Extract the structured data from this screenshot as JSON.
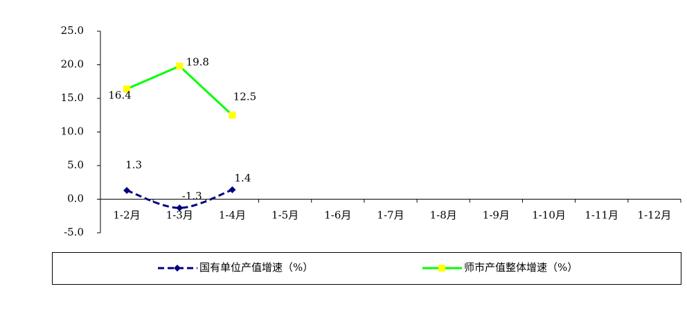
{
  "chart_data": {
    "type": "line",
    "categories": [
      "1-2月",
      "1-3月",
      "1-4月",
      "1-5月",
      "1-6月",
      "1-7月",
      "1-8月",
      "1-9月",
      "1-10月",
      "1-11月",
      "1-12月"
    ],
    "series": [
      {
        "name": "国有单位产值增速（%）",
        "color": "#000080",
        "values": [
          1.3,
          -1.3,
          1.4,
          null,
          null,
          null,
          null,
          null,
          null,
          null,
          null
        ]
      },
      {
        "name": "师市产值整体增速（%）",
        "color": "#00ff00",
        "marker_color": "#ffff00",
        "values": [
          16.4,
          19.8,
          12.5,
          null,
          null,
          null,
          null,
          null,
          null,
          null,
          null
        ]
      }
    ],
    "ylim": [
      -5,
      25
    ],
    "yticks": [
      {
        "value": -5,
        "label": "-5.0"
      },
      {
        "value": 0,
        "label": "0.0"
      },
      {
        "value": 5,
        "label": "5.0"
      },
      {
        "value": 10,
        "label": "10.0"
      },
      {
        "value": 15,
        "label": "15.0"
      },
      {
        "value": 20,
        "label": "20.0"
      },
      {
        "value": 25,
        "label": "25.0"
      }
    ],
    "grid": false
  }
}
